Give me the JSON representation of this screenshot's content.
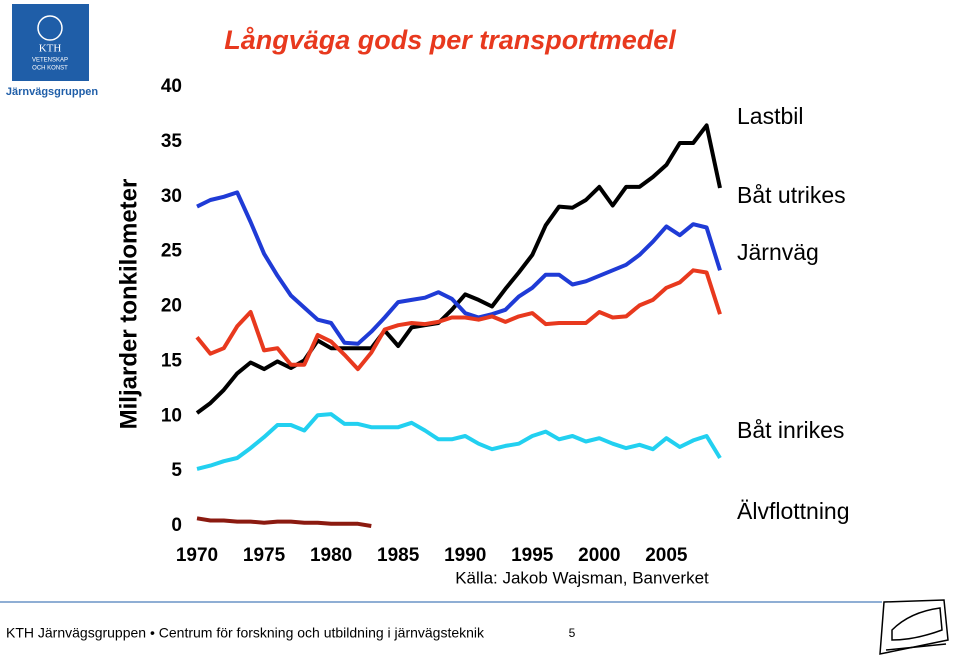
{
  "logo": {
    "name": "KTH",
    "subtitle": [
      "VETENSKAP",
      "OCH KONST"
    ]
  },
  "group": "Järnvägsgruppen",
  "footer": {
    "text": "KTH Järnvägsgruppen • Centrum för forskning och utbildning i järnvägsteknik",
    "page": "5"
  },
  "chart_data": {
    "type": "line",
    "title": "Långväga gods per transportmedel",
    "y_label": "Miljarder tonkilometer",
    "source": "Källa: Jakob Wajsman, Banverket",
    "x": [
      1970,
      1971,
      1972,
      1973,
      1974,
      1975,
      1976,
      1977,
      1978,
      1979,
      1980,
      1981,
      1982,
      1983,
      1984,
      1985,
      1986,
      1987,
      1988,
      1989,
      1990,
      1991,
      1992,
      1993,
      1994,
      1995,
      1996,
      1997,
      1998,
      1999,
      2000,
      2001,
      2002,
      2003,
      2004,
      2005,
      2006,
      2007,
      2008,
      2009
    ],
    "xlim": [
      1970,
      2009
    ],
    "xticks": [
      1970,
      1975,
      1980,
      1985,
      1990,
      1995,
      2000,
      2005
    ],
    "ylim": [
      0,
      40
    ],
    "yticks": [
      0,
      5,
      10,
      15,
      20,
      25,
      30,
      35,
      40
    ],
    "grid": false,
    "series": [
      {
        "name": "Lastbil",
        "color": "#000000",
        "values": [
          10.3,
          11.2,
          12.4,
          13.9,
          14.9,
          14.3,
          15.0,
          14.4,
          15.1,
          16.9,
          16.2,
          16.2,
          16.2,
          16.2,
          17.8,
          16.4,
          18.1,
          18.3,
          18.5,
          19.7,
          21.1,
          20.6,
          20.0,
          21.6,
          23.1,
          24.7,
          27.4,
          29.1,
          29.0,
          29.7,
          30.9,
          29.2,
          30.9,
          30.9,
          31.8,
          32.9,
          34.9,
          34.9,
          36.5,
          30.8
        ]
      },
      {
        "name": "Båt utrikes",
        "color": "#1f3bd6",
        "values": [
          29.1,
          29.7,
          30.0,
          30.4,
          27.7,
          24.8,
          22.8,
          21.0,
          19.9,
          18.8,
          18.5,
          16.7,
          16.6,
          17.7,
          19.0,
          20.4,
          20.6,
          20.8,
          21.3,
          20.7,
          19.4,
          19.0,
          19.3,
          19.7,
          20.9,
          21.7,
          22.9,
          22.9,
          22.0,
          22.3,
          22.8,
          23.3,
          23.8,
          24.7,
          25.9,
          27.3,
          26.5,
          27.5,
          27.2,
          23.3
        ]
      },
      {
        "name": "Järnväg",
        "color": "#e8391e",
        "values": [
          17.2,
          15.7,
          16.2,
          18.2,
          19.5,
          16.0,
          16.2,
          14.7,
          14.7,
          17.4,
          16.8,
          15.6,
          14.3,
          15.8,
          17.9,
          18.3,
          18.5,
          18.4,
          18.6,
          19.0,
          19.0,
          18.8,
          19.1,
          18.6,
          19.1,
          19.4,
          18.4,
          18.5,
          18.5,
          18.5,
          19.5,
          19.0,
          19.1,
          20.1,
          20.6,
          21.7,
          22.2,
          23.3,
          23.1,
          19.3
        ]
      },
      {
        "name": "Båt inrikes",
        "color": "#22d0f0",
        "values": [
          5.2,
          5.5,
          5.9,
          6.2,
          7.1,
          8.1,
          9.2,
          9.2,
          8.7,
          10.1,
          10.2,
          9.3,
          9.3,
          9.0,
          9.0,
          9.0,
          9.4,
          8.7,
          7.9,
          7.9,
          8.2,
          7.5,
          7.0,
          7.3,
          7.5,
          8.2,
          8.6,
          7.9,
          8.2,
          7.7,
          8.0,
          7.5,
          7.1,
          7.4,
          7.0,
          8.0,
          7.2,
          7.8,
          8.2,
          6.2
        ]
      },
      {
        "name": "Älvflottning",
        "color": "#8b1a10",
        "values": [
          0.7,
          0.5,
          0.5,
          0.4,
          0.4,
          0.3,
          0.4,
          0.4,
          0.3,
          0.3,
          0.2,
          0.2,
          0.2,
          0.0,
          null,
          null,
          null,
          null,
          null,
          null,
          null,
          null,
          null,
          null,
          null,
          null,
          null,
          null,
          null,
          null,
          null,
          null,
          null,
          null,
          null,
          null,
          null,
          null,
          null,
          null
        ]
      }
    ]
  }
}
